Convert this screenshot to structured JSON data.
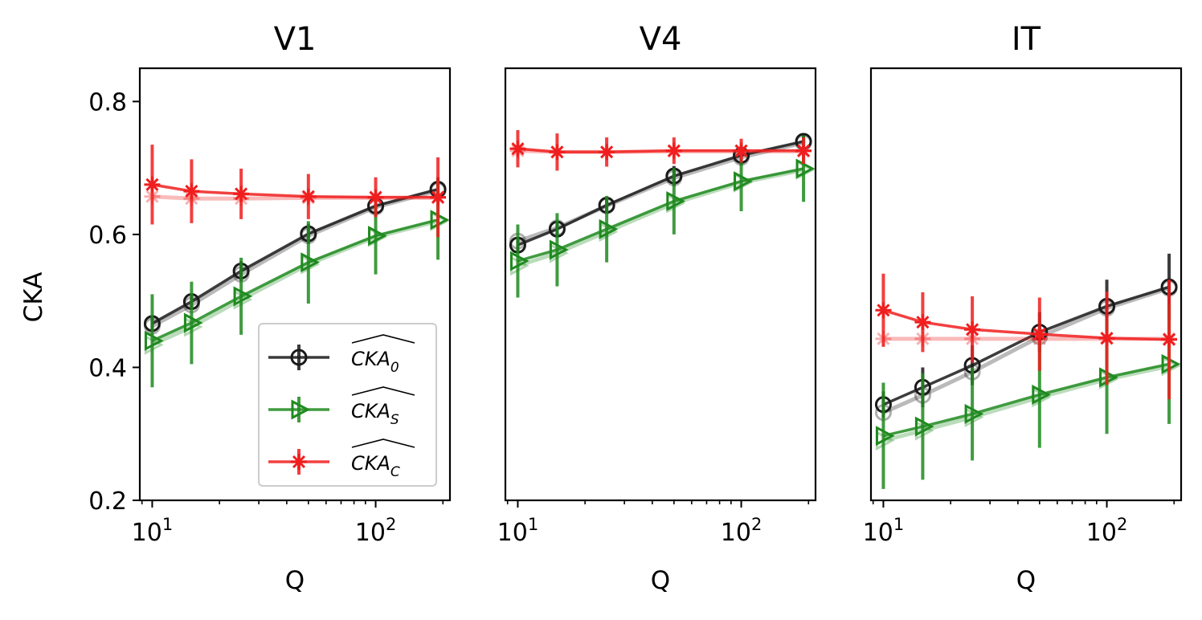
{
  "chart_data": {
    "type": "line",
    "ylabel": "CKA",
    "xlabel": "Q",
    "xscale": "log",
    "x": [
      10,
      15,
      25,
      50,
      100,
      190
    ],
    "xlim": [
      8.8,
      215
    ],
    "ylim": [
      0.2,
      0.85
    ],
    "yticks": [
      0.2,
      0.4,
      0.6,
      0.8
    ],
    "ytick_labels": [
      "0.2",
      "0.4",
      "0.6",
      "0.8"
    ],
    "xtick_major": [
      10,
      100
    ],
    "xtick_labels": [
      {
        "base": "10",
        "exp": "1"
      },
      {
        "base": "10",
        "exp": "2"
      }
    ],
    "legend": {
      "location": "lower-right of first panel",
      "entries": [
        {
          "key": "CKA0",
          "base": "CKA",
          "sub": "0",
          "color": "#1a1a1a",
          "marker": "circle"
        },
        {
          "key": "CKAS",
          "base": "CKA",
          "sub": "S",
          "color": "#1f8a1f",
          "marker": "triangle-right"
        },
        {
          "key": "CKAC",
          "base": "CKA",
          "sub": "C",
          "color": "#f01e1e",
          "marker": "x-star"
        }
      ]
    },
    "panels": [
      {
        "title": "V1",
        "show_yaxis": true,
        "series": [
          {
            "key": "CKA0",
            "values": [
              0.466,
              0.499,
              0.545,
              0.601,
              0.643,
              0.668
            ],
            "err": [
              0.012,
              0.012,
              0.015,
              0.015,
              0.015,
              0.018
            ],
            "faint": [
              0.462,
              0.494,
              0.54,
              0.598,
              0.641,
              0.666
            ]
          },
          {
            "key": "CKAS",
            "values": [
              0.44,
              0.467,
              0.507,
              0.558,
              0.598,
              0.622
            ],
            "err": [
              0.07,
              0.062,
              0.058,
              0.062,
              0.058,
              0.06
            ],
            "faint": [
              0.434,
              0.461,
              0.502,
              0.555,
              0.596,
              0.62
            ]
          },
          {
            "key": "CKAC",
            "values": [
              0.675,
              0.665,
              0.661,
              0.657,
              0.656,
              0.656
            ],
            "err": [
              0.06,
              0.048,
              0.038,
              0.034,
              0.03,
              0.06
            ],
            "faint": [
              0.657,
              0.654,
              0.654,
              0.655,
              0.655,
              0.655
            ]
          }
        ]
      },
      {
        "title": "V4",
        "show_yaxis": false,
        "series": [
          {
            "key": "CKA0",
            "values": [
              0.584,
              0.608,
              0.644,
              0.688,
              0.719,
              0.74
            ],
            "err": [
              0.01,
              0.01,
              0.012,
              0.015,
              0.015,
              0.01
            ],
            "faint": [
              0.59,
              0.61,
              0.643,
              0.685,
              0.716,
              0.738
            ]
          },
          {
            "key": "CKAS",
            "values": [
              0.56,
              0.577,
              0.608,
              0.65,
              0.68,
              0.699
            ],
            "err": [
              0.055,
              0.055,
              0.05,
              0.05,
              0.045,
              0.05
            ],
            "faint": [
              0.553,
              0.572,
              0.604,
              0.647,
              0.678,
              0.697
            ]
          },
          {
            "key": "CKAC",
            "values": [
              0.729,
              0.724,
              0.724,
              0.726,
              0.726,
              0.726
            ],
            "err": [
              0.028,
              0.028,
              0.022,
              0.02,
              0.018,
              0.02
            ],
            "faint": [
              0.726,
              0.724,
              0.724,
              0.725,
              0.725,
              0.725
            ]
          }
        ]
      },
      {
        "title": "IT",
        "show_yaxis": false,
        "series": [
          {
            "key": "CKA0",
            "values": [
              0.344,
              0.37,
              0.403,
              0.453,
              0.492,
              0.521
            ],
            "err": [
              0.02,
              0.03,
              0.03,
              0.03,
              0.04,
              0.05
            ],
            "faint": [
              0.332,
              0.358,
              0.393,
              0.446,
              0.489,
              0.519
            ]
          },
          {
            "key": "CKAS",
            "values": [
              0.297,
              0.311,
              0.33,
              0.359,
              0.385,
              0.405
            ],
            "err": [
              0.08,
              0.08,
              0.07,
              0.08,
              0.085,
              0.09
            ],
            "faint": [
              0.29,
              0.305,
              0.325,
              0.355,
              0.382,
              0.402
            ]
          },
          {
            "key": "CKAC",
            "values": [
              0.486,
              0.468,
              0.457,
              0.45,
              0.444,
              0.442
            ],
            "err": [
              0.055,
              0.045,
              0.05,
              0.055,
              0.07,
              0.09
            ],
            "faint": [
              0.443,
              0.443,
              0.443,
              0.443,
              0.443,
              0.443
            ]
          }
        ]
      }
    ]
  }
}
